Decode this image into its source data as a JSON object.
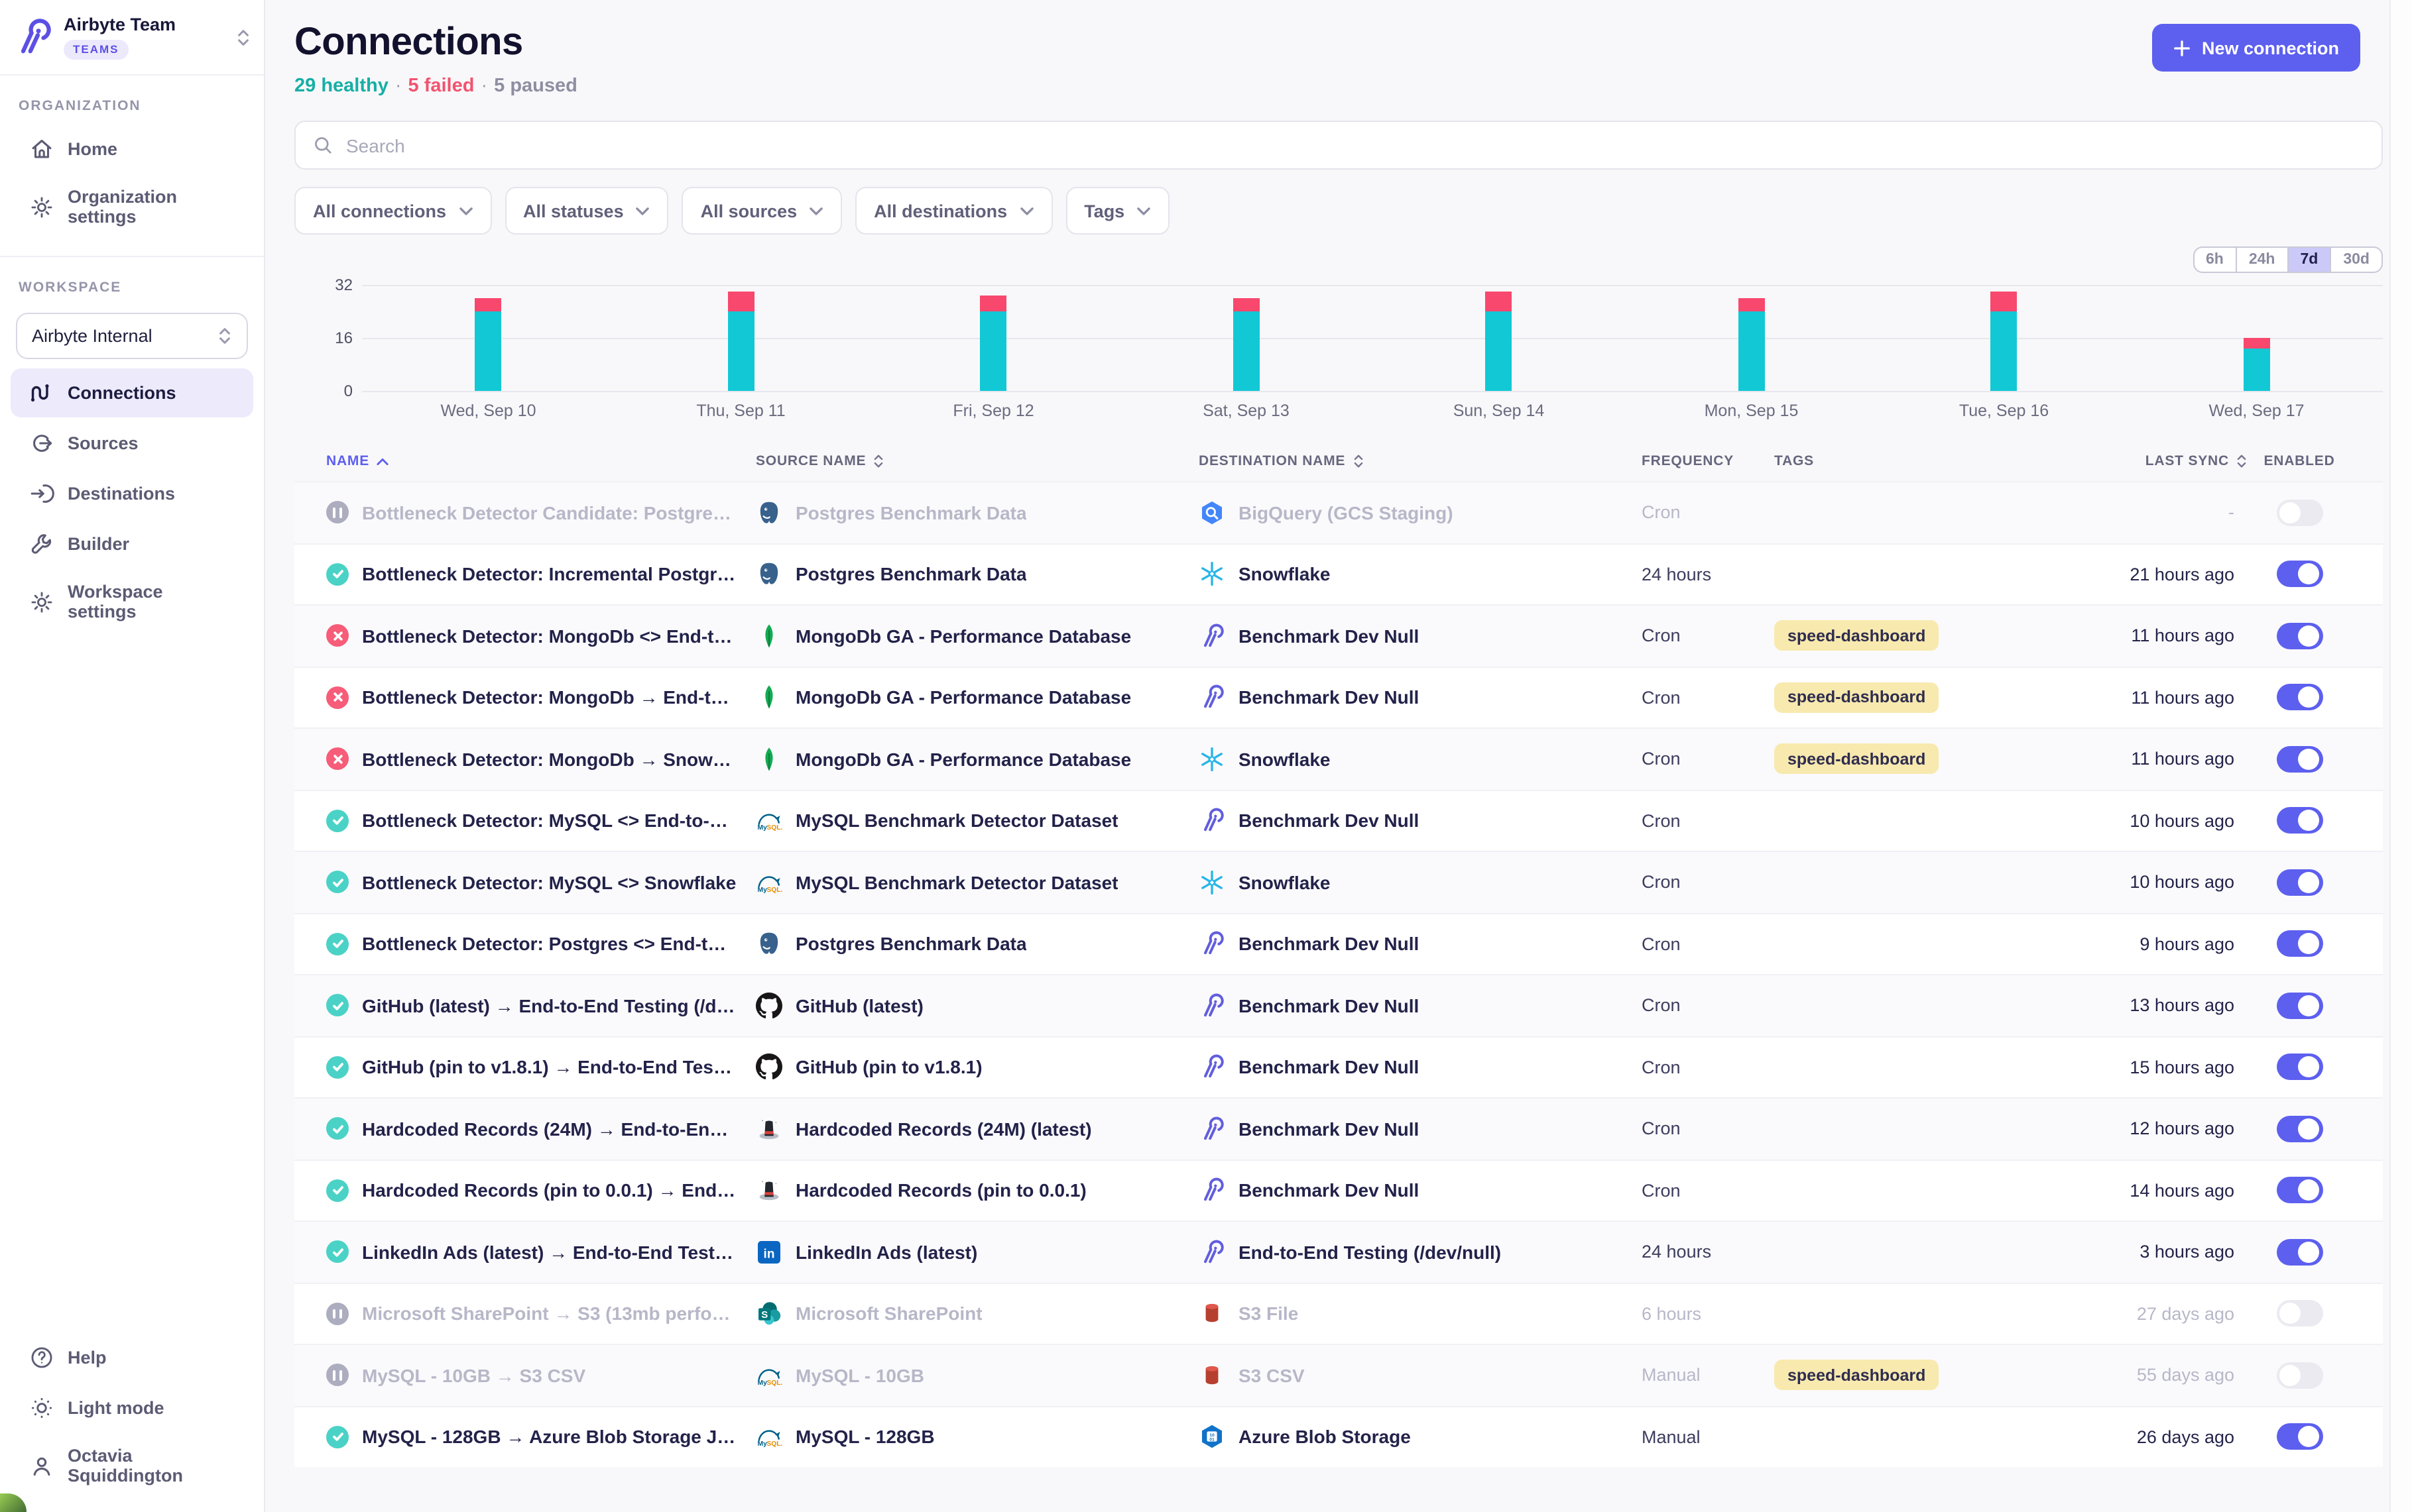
{
  "sidebar": {
    "org_name": "Airbyte Team",
    "org_badge": "TEAMS",
    "org_section_label": "ORGANIZATION",
    "org_items": [
      {
        "label": "Home",
        "icon": "home"
      },
      {
        "label": "Organization settings",
        "icon": "gear"
      }
    ],
    "workspace_section_label": "WORKSPACE",
    "workspace_selector": "Airbyte Internal",
    "workspace_items": [
      {
        "label": "Connections",
        "icon": "connections",
        "active": true
      },
      {
        "label": "Sources",
        "icon": "sources",
        "active": false
      },
      {
        "label": "Destinations",
        "icon": "destinations",
        "active": false
      },
      {
        "label": "Builder",
        "icon": "builder",
        "active": false
      },
      {
        "label": "Workspace settings",
        "icon": "gear",
        "active": false
      }
    ],
    "footer_items": [
      {
        "label": "Help",
        "icon": "help"
      },
      {
        "label": "Light mode",
        "icon": "sun"
      },
      {
        "label": "Octavia Squiddington",
        "icon": "user"
      }
    ]
  },
  "header": {
    "title": "Connections",
    "healthy": "29 healthy",
    "failed": "5 failed",
    "paused": "5 paused",
    "separator": "·",
    "new_connection_label": "New connection"
  },
  "search": {
    "placeholder": "Search",
    "value": ""
  },
  "filters": [
    "All connections",
    "All statuses",
    "All sources",
    "All destinations",
    "Tags"
  ],
  "time_range": {
    "options": [
      "6h",
      "24h",
      "7d",
      "30d"
    ],
    "selected": "7d"
  },
  "chart_data": {
    "type": "bar",
    "stacked": true,
    "categories": [
      "Wed, Sep 10",
      "Thu, Sep 11",
      "Fri, Sep 12",
      "Sat, Sep 13",
      "Sun, Sep 14",
      "Mon, Sep 15",
      "Tue, Sep 16",
      "Wed, Sep 17"
    ],
    "series": [
      {
        "name": "succeeded",
        "color": "#12C8D5",
        "values": [
          24,
          24,
          24,
          24,
          24,
          24,
          24,
          13
        ]
      },
      {
        "name": "failed",
        "color": "#F8486D",
        "values": [
          4,
          6,
          5,
          4,
          6,
          4,
          6,
          3
        ]
      }
    ],
    "ylim": [
      0,
      32
    ],
    "yticks": [
      0,
      16,
      32
    ],
    "grid": true,
    "legend": "none"
  },
  "table": {
    "columns": [
      {
        "label": "NAME",
        "sort": "asc",
        "accent": true,
        "align": "left"
      },
      {
        "label": "SOURCE NAME",
        "sort": "both",
        "align": "left"
      },
      {
        "label": "DESTINATION NAME",
        "sort": "both",
        "align": "left"
      },
      {
        "label": "FREQUENCY",
        "sort": "none",
        "align": "left"
      },
      {
        "label": "TAGS",
        "sort": "none",
        "align": "left"
      },
      {
        "label": "LAST SYNC",
        "sort": "both",
        "align": "right"
      },
      {
        "label": "ENABLED",
        "sort": "none",
        "align": "center"
      }
    ],
    "rows": [
      {
        "status": "paused",
        "name": "Bottleneck Detector Candidate: Postgres <> ...",
        "source_icon": "postgres",
        "source": "Postgres Benchmark Data",
        "dest_icon": "bigquery",
        "destination": "BigQuery (GCS Staging)",
        "frequency": "Cron",
        "tags": [],
        "last_sync": "-",
        "enabled": false
      },
      {
        "status": "healthy",
        "name": "Bottleneck Detector: Incremental Postgres ...",
        "source_icon": "postgres",
        "source": "Postgres Benchmark Data",
        "dest_icon": "snowflake",
        "destination": "Snowflake",
        "frequency": "24 hours",
        "tags": [],
        "last_sync": "21 hours ago",
        "enabled": true
      },
      {
        "status": "failed",
        "name": "Bottleneck Detector: MongoDb <> End-to-E...",
        "source_icon": "mongodb",
        "source": "MongoDb GA - Performance Database",
        "dest_icon": "airbyte",
        "destination": "Benchmark Dev Null",
        "frequency": "Cron",
        "tags": [
          "speed-dashboard"
        ],
        "last_sync": "11 hours ago",
        "enabled": true
      },
      {
        "status": "failed",
        "name": "Bottleneck Detector: MongoDb → End-to-En...",
        "source_icon": "mongodb",
        "source": "MongoDb GA - Performance Database",
        "dest_icon": "airbyte",
        "destination": "Benchmark Dev Null",
        "frequency": "Cron",
        "tags": [
          "speed-dashboard"
        ],
        "last_sync": "11 hours ago",
        "enabled": true
      },
      {
        "status": "failed",
        "name": "Bottleneck Detector: MongoDb → Snowflake",
        "source_icon": "mongodb",
        "source": "MongoDb GA - Performance Database",
        "dest_icon": "snowflake",
        "destination": "Snowflake",
        "frequency": "Cron",
        "tags": [
          "speed-dashboard"
        ],
        "last_sync": "11 hours ago",
        "enabled": true
      },
      {
        "status": "healthy",
        "name": "Bottleneck Detector: MySQL <> End-to-End ...",
        "source_icon": "mysql",
        "source": "MySQL Benchmark Detector Dataset",
        "dest_icon": "airbyte",
        "destination": "Benchmark Dev Null",
        "frequency": "Cron",
        "tags": [],
        "last_sync": "10 hours ago",
        "enabled": true
      },
      {
        "status": "healthy",
        "name": "Bottleneck Detector: MySQL <> Snowflake",
        "source_icon": "mysql",
        "source": "MySQL Benchmark Detector Dataset",
        "dest_icon": "snowflake",
        "destination": "Snowflake",
        "frequency": "Cron",
        "tags": [],
        "last_sync": "10 hours ago",
        "enabled": true
      },
      {
        "status": "healthy",
        "name": "Bottleneck Detector: Postgres <> End-to-En...",
        "source_icon": "postgres",
        "source": "Postgres Benchmark Data",
        "dest_icon": "airbyte",
        "destination": "Benchmark Dev Null",
        "frequency": "Cron",
        "tags": [],
        "last_sync": "9 hours ago",
        "enabled": true
      },
      {
        "status": "healthy",
        "name": "GitHub (latest) → End-to-End Testing (/dev/...",
        "source_icon": "github",
        "source": "GitHub (latest)",
        "dest_icon": "airbyte",
        "destination": "Benchmark Dev Null",
        "frequency": "Cron",
        "tags": [],
        "last_sync": "13 hours ago",
        "enabled": true
      },
      {
        "status": "healthy",
        "name": "GitHub (pin to v1.8.1) → End-to-End Testing (...",
        "source_icon": "github",
        "source": "GitHub (pin to v1.8.1)",
        "dest_icon": "airbyte",
        "destination": "Benchmark Dev Null",
        "frequency": "Cron",
        "tags": [],
        "last_sync": "15 hours ago",
        "enabled": true
      },
      {
        "status": "healthy",
        "name": "Hardcoded Records (24M) → End-to-End Te...",
        "source_icon": "hat",
        "source": "Hardcoded Records (24M) (latest)",
        "dest_icon": "airbyte",
        "destination": "Benchmark Dev Null",
        "frequency": "Cron",
        "tags": [],
        "last_sync": "12 hours ago",
        "enabled": true
      },
      {
        "status": "healthy",
        "name": "Hardcoded Records (pin to 0.0.1) → End-to-E...",
        "source_icon": "hat",
        "source": "Hardcoded Records (pin to 0.0.1)",
        "dest_icon": "airbyte",
        "destination": "Benchmark Dev Null",
        "frequency": "Cron",
        "tags": [],
        "last_sync": "14 hours ago",
        "enabled": true
      },
      {
        "status": "healthy",
        "name": "LinkedIn Ads (latest) → End-to-End Testing (...",
        "source_icon": "linkedin",
        "source": "LinkedIn Ads (latest)",
        "dest_icon": "airbyte",
        "destination": "End-to-End Testing (/dev/null)",
        "frequency": "24 hours",
        "tags": [],
        "last_sync": "3 hours ago",
        "enabled": true
      },
      {
        "status": "paused",
        "name": "Microsoft SharePoint → S3 (13mb performan...",
        "source_icon": "sharepoint",
        "source": "Microsoft SharePoint",
        "dest_icon": "s3",
        "destination": "S3 File",
        "frequency": "6 hours",
        "tags": [],
        "last_sync": "27 days ago",
        "enabled": false
      },
      {
        "status": "paused",
        "name": "MySQL - 10GB → S3 CSV",
        "source_icon": "mysql",
        "source": "MySQL - 10GB",
        "dest_icon": "s3",
        "destination": "S3 CSV",
        "frequency": "Manual",
        "tags": [
          "speed-dashboard"
        ],
        "last_sync": "55 days ago",
        "enabled": false
      },
      {
        "status": "healthy",
        "name": "MySQL - 128GB → Azure Blob Storage JSOn ...",
        "source_icon": "mysql",
        "source": "MySQL - 128GB",
        "dest_icon": "azure",
        "destination": "Azure Blob Storage",
        "frequency": "Manual",
        "tags": [],
        "last_sync": "26 days ago",
        "enabled": true
      }
    ]
  },
  "colors": {
    "accent": "#5D5FEF",
    "healthy": "#16AFA6",
    "failed": "#F2536F",
    "paused": "#8E8EA2",
    "bar_success": "#12C8D5",
    "bar_failed": "#F8486D",
    "tag_bg": "#F8E9AE"
  }
}
